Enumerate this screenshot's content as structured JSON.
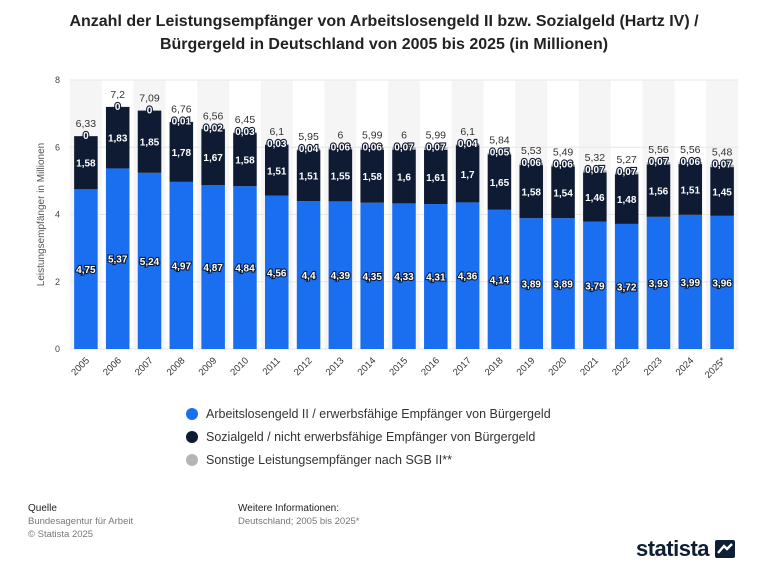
{
  "title": {
    "line1": "Anzahl der Leistungsempfänger von Arbeitslosengeld II bzw. Sozialgeld (Hartz IV) /",
    "line2": "Bürgergeld in Deutschland von 2005 bis 2025 (in Millionen)"
  },
  "colors": {
    "series1": "#1a6ff1",
    "series2": "#0e1b33",
    "series3": "#b5b5b5",
    "grid": "#e6e6e6"
  },
  "chart_data": {
    "type": "bar",
    "stacked": true,
    "categories": [
      "2005",
      "2006",
      "2007",
      "2008",
      "2009",
      "2010",
      "2011",
      "2012",
      "2013",
      "2014",
      "2015",
      "2016",
      "2017",
      "2018",
      "2019",
      "2020",
      "2021",
      "2022",
      "2023",
      "2024",
      "2025*"
    ],
    "series": [
      {
        "name": "Arbeitslosengeld II / erwerbsfähige Empfänger von Bürgergeld",
        "values": [
          4.75,
          5.37,
          5.24,
          4.97,
          4.87,
          4.84,
          4.56,
          4.4,
          4.39,
          4.35,
          4.33,
          4.31,
          4.36,
          4.14,
          3.89,
          3.89,
          3.79,
          3.72,
          3.93,
          3.99,
          3.96
        ],
        "labels": [
          "4,75",
          "5,37",
          "5,24",
          "4,97",
          "4,87",
          "4,84",
          "4,56",
          "4,4",
          "4,39",
          "4,35",
          "4,33",
          "4,31",
          "4,36",
          "4,14",
          "3,89",
          "3,89",
          "3,79",
          "3,72",
          "3,93",
          "3,99",
          "3,96"
        ]
      },
      {
        "name": "Sozialgeld / nicht erwerbsfähige Empfänger von Bürgergeld",
        "values": [
          1.58,
          1.83,
          1.85,
          1.78,
          1.67,
          1.58,
          1.51,
          1.51,
          1.55,
          1.58,
          1.6,
          1.61,
          1.7,
          1.65,
          1.58,
          1.54,
          1.46,
          1.48,
          1.56,
          1.51,
          1.45
        ],
        "labels": [
          "1,58",
          "1,83",
          "1,85",
          "1,78",
          "1,67",
          "1,58",
          "1,51",
          "1,51",
          "1,55",
          "1,58",
          "1,6",
          "1,61",
          "1,7",
          "1,65",
          "1,58",
          "1,54",
          "1,46",
          "1,48",
          "1,56",
          "1,51",
          "1,45"
        ]
      },
      {
        "name": "Sonstige Leistungsempfänger nach SGB II**",
        "values": [
          0,
          0,
          0,
          0.01,
          0.02,
          0.03,
          0.03,
          0.04,
          0.06,
          0.06,
          0.07,
          0.07,
          0.04,
          0.05,
          0.06,
          0.06,
          0.07,
          0.07,
          0.07,
          0.06,
          0.07
        ],
        "labels": [
          "0",
          "0",
          "0",
          "0,01",
          "0,02",
          "0,03",
          "0,03",
          "0,04",
          "0,06",
          "0,06",
          "0,07",
          "0,07",
          "0,04",
          "0,05",
          "0,06",
          "0,06",
          "0,07",
          "0,07",
          "0,07",
          "0,06",
          "0,07"
        ]
      }
    ],
    "totals": [
      "6,33",
      "7,2",
      "7,09",
      "6,76",
      "6,56",
      "6,45",
      "6,1",
      "5,95",
      "6",
      "5,99",
      "6",
      "5,99",
      "6,1",
      "5,84",
      "5,53",
      "5,49",
      "5,32",
      "5,27",
      "5,56",
      "5,56",
      "5,48"
    ],
    "ylabel": "Leistungsempfänger in Millionen",
    "xlabel": "",
    "ylim": [
      0,
      8
    ],
    "yticks": [
      0,
      2,
      4,
      6,
      8
    ],
    "grid": true,
    "legend_position": "bottom"
  },
  "legend": {
    "items": [
      {
        "label": "Arbeitslosengeld II / erwerbsfähige Empfänger von Bürgergeld"
      },
      {
        "label": "Sozialgeld / nicht erwerbsfähige Empfänger von Bürgergeld"
      },
      {
        "label": "Sonstige Leistungsempfänger nach SGB II**"
      }
    ]
  },
  "footer": {
    "source_heading": "Quelle",
    "source_name": "Bundesagentur für Arbeit",
    "copyright": "© Statista 2025",
    "info_heading": "Weitere Informationen:",
    "info_text": "Deutschland; 2005 bis 2025*"
  },
  "brand": {
    "logo_text": "statista"
  }
}
